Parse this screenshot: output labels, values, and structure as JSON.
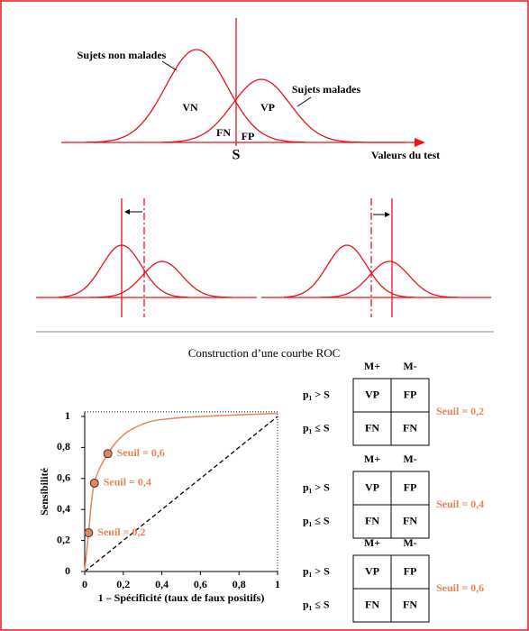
{
  "diagram": {
    "non_malades": "Sujets non malades",
    "malades": "Sujets malades",
    "vn": "VN",
    "vp": "VP",
    "fn": "FN",
    "fp": "FP",
    "s": "S",
    "axis": "Valeurs du test"
  },
  "title": "Construction d’une courbe ROC",
  "chart_data": {
    "type": "line",
    "x_label": "1 – Spécificité (taux de faux positifs)",
    "y_label": "Sensibilité",
    "xlim": [
      0,
      1
    ],
    "ylim": [
      0,
      1.03
    ],
    "xticks": [
      0,
      {
        "value": 0.2,
        "label": "0,2"
      },
      {
        "value": 0.4,
        "label": "0,4"
      },
      {
        "value": 0.6,
        "label": "0,6"
      },
      {
        "value": 0.8,
        "label": "0,8"
      },
      1
    ],
    "yticks": [
      0,
      {
        "value": 0.2,
        "label": "0,2"
      },
      {
        "value": 0.4,
        "label": "0,4"
      },
      {
        "value": 0.6,
        "label": "0,6"
      },
      {
        "value": 0.8,
        "label": "0,8"
      },
      1
    ],
    "color": "#e8845a",
    "curve": {
      "x": [
        0,
        0.02,
        0.05,
        0.12,
        0.2,
        0.3,
        0.4,
        0.6,
        1
      ],
      "values": [
        0,
        0.25,
        0.57,
        0.76,
        0.88,
        0.95,
        0.98,
        1,
        1.02
      ]
    },
    "points": {
      "x": [
        0.02,
        0.05,
        0.12
      ],
      "values": [
        0.25,
        0.57,
        0.76
      ],
      "labels": [
        "Seuil = 0,2",
        "Seuil = 0,4",
        "Seuil = 0,6"
      ]
    }
  },
  "tables": [
    {
      "cols": [
        "M+",
        "M-"
      ],
      "rows": [
        "p₁ > S",
        "p₁ ≤ S"
      ],
      "cells": [
        [
          "VP",
          "FP"
        ],
        [
          "FN",
          "FN"
        ]
      ],
      "label": "Seuil = 0,2"
    },
    {
      "cols": [
        "M+",
        "M-"
      ],
      "rows": [
        "p₁ > S",
        "p₁ ≤ S"
      ],
      "cells": [
        [
          "VP",
          "FP"
        ],
        [
          "FN",
          "FN"
        ]
      ],
      "label": "Seuil = 0,4"
    },
    {
      "cols": [
        "M+",
        "M-"
      ],
      "rows": [
        "p₁ > S",
        "p₁ ≤ S"
      ],
      "cells": [
        [
          "VP",
          "FP"
        ],
        [
          "FN",
          "FN"
        ]
      ],
      "label": "Seuil = 0,6"
    }
  ]
}
